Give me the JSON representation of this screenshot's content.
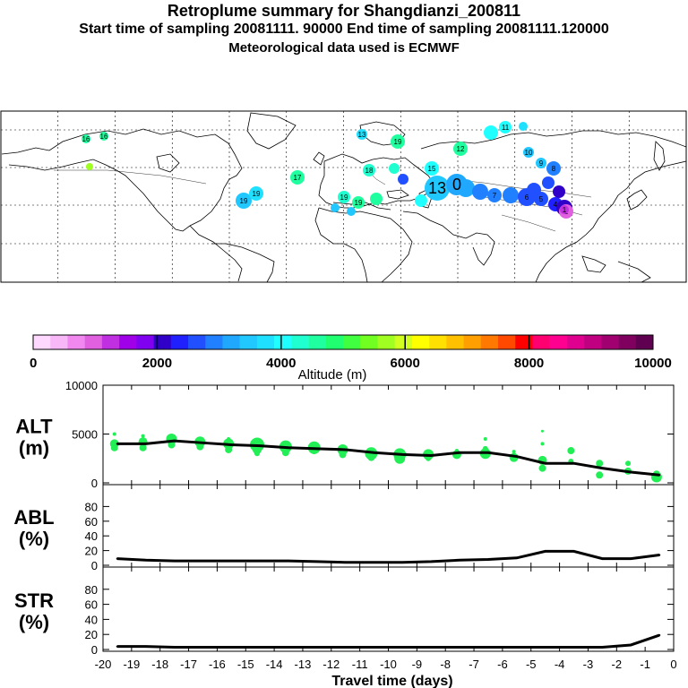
{
  "header": {
    "title": "Retroplume summary for Shangdianzi_200811",
    "sampling": "Start time of sampling 20081111. 90000     End time of sampling 20081111.120000",
    "met": "Meteorological data used is ECMWF"
  },
  "colors": {
    "plume_green": "#22ee55",
    "line": "#000000",
    "map_ocean": "#ffffff",
    "coast": "#000000"
  },
  "map": {
    "plume_labels": [
      "16",
      "16",
      "19",
      "19",
      "17",
      "18",
      "19",
      "19",
      "19",
      "15",
      "13",
      "12",
      "11",
      "10",
      "9",
      "8",
      "7",
      "6",
      "5",
      "4",
      "3",
      "2",
      "1",
      "13",
      "0"
    ]
  },
  "colorbar": {
    "title": "Altitude (m)",
    "ticks": [
      "0",
      "2000",
      "4000",
      "6000",
      "8000",
      "10000"
    ],
    "colors": [
      "#ffd8ff",
      "#f8b8f8",
      "#f088f0",
      "#e060e0",
      "#c030e0",
      "#a000e8",
      "#8000f0",
      "#3000c8",
      "#2020ff",
      "#2050ff",
      "#2080ff",
      "#20a8ff",
      "#20c8ff",
      "#20e0ff",
      "#20ffff",
      "#20ffd0",
      "#20ffa0",
      "#20ff70",
      "#40ff40",
      "#70ff20",
      "#a0ff20",
      "#d0ff20",
      "#ffff00",
      "#ffe000",
      "#ffc000",
      "#ffa000",
      "#ff7800",
      "#ff4800",
      "#ff0000",
      "#ff0070",
      "#ff0090",
      "#e00090",
      "#c00080",
      "#a00070",
      "#800060",
      "#600050"
    ]
  },
  "chart_data": [
    {
      "type": "line",
      "panel": "ALT",
      "ylabel": "ALT\n(m)",
      "ylabel_line1": "ALT",
      "ylabel_line2": "(m)",
      "ylim": [
        0,
        10000
      ],
      "yticks": [
        "10000",
        "5000",
        "0"
      ],
      "ytick_values": [
        10000,
        5000,
        0
      ],
      "x": [
        -19.5,
        -18.5,
        -17.5,
        -16.5,
        -15.5,
        -14.5,
        -13.5,
        -12.5,
        -11.5,
        -10.5,
        -9.5,
        -8.5,
        -7.5,
        -6.5,
        -5.5,
        -4.5,
        -3.5,
        -2.5,
        -1.5,
        -0.5
      ],
      "values": [
        4000,
        4000,
        4300,
        4100,
        3900,
        3800,
        3600,
        3500,
        3400,
        3100,
        2900,
        2800,
        3100,
        3100,
        2700,
        2000,
        2000,
        1500,
        1100,
        800
      ],
      "scatter": [
        {
          "x": -19.6,
          "y": 4000,
          "s": 5
        },
        {
          "x": -19.6,
          "y": 3600,
          "s": 4
        },
        {
          "x": -19.6,
          "y": 5000,
          "s": 2
        },
        {
          "x": -18.6,
          "y": 4200,
          "s": 5
        },
        {
          "x": -18.6,
          "y": 3600,
          "s": 4
        },
        {
          "x": -18.6,
          "y": 4800,
          "s": 2
        },
        {
          "x": -17.6,
          "y": 4500,
          "s": 6
        },
        {
          "x": -17.6,
          "y": 3900,
          "s": 4
        },
        {
          "x": -16.6,
          "y": 4200,
          "s": 6
        },
        {
          "x": -16.6,
          "y": 3700,
          "s": 4
        },
        {
          "x": -15.6,
          "y": 4000,
          "s": 6
        },
        {
          "x": -15.6,
          "y": 3400,
          "s": 4
        },
        {
          "x": -15.6,
          "y": 4500,
          "s": 2
        },
        {
          "x": -14.6,
          "y": 3900,
          "s": 8
        },
        {
          "x": -14.6,
          "y": 3400,
          "s": 5
        },
        {
          "x": -14.6,
          "y": 3000,
          "s": 3
        },
        {
          "x": -13.6,
          "y": 3700,
          "s": 7
        },
        {
          "x": -13.6,
          "y": 3100,
          "s": 4
        },
        {
          "x": -12.6,
          "y": 3600,
          "s": 7
        },
        {
          "x": -12.6,
          "y": 3300,
          "s": 4
        },
        {
          "x": -11.6,
          "y": 3400,
          "s": 6
        },
        {
          "x": -11.6,
          "y": 2900,
          "s": 4
        },
        {
          "x": -10.6,
          "y": 3000,
          "s": 7
        },
        {
          "x": -10.6,
          "y": 2600,
          "s": 4
        },
        {
          "x": -9.6,
          "y": 2900,
          "s": 7
        },
        {
          "x": -9.6,
          "y": 2500,
          "s": 6
        },
        {
          "x": -8.6,
          "y": 2900,
          "s": 6
        },
        {
          "x": -8.6,
          "y": 2500,
          "s": 3
        },
        {
          "x": -7.6,
          "y": 2900,
          "s": 5
        },
        {
          "x": -7.6,
          "y": 3300,
          "s": 2
        },
        {
          "x": -6.6,
          "y": 3000,
          "s": 6
        },
        {
          "x": -6.6,
          "y": 3500,
          "s": 3
        },
        {
          "x": -6.6,
          "y": 4500,
          "s": 2
        },
        {
          "x": -5.6,
          "y": 2600,
          "s": 5
        },
        {
          "x": -5.6,
          "y": 3200,
          "s": 2
        },
        {
          "x": -4.6,
          "y": 2300,
          "s": 5
        },
        {
          "x": -4.6,
          "y": 1500,
          "s": 4
        },
        {
          "x": -4.6,
          "y": 4000,
          "s": 2
        },
        {
          "x": -4.6,
          "y": 5300,
          "s": 1.5
        },
        {
          "x": -3.6,
          "y": 3300,
          "s": 4
        },
        {
          "x": -3.6,
          "y": 2200,
          "s": 3
        },
        {
          "x": -2.6,
          "y": 2000,
          "s": 4
        },
        {
          "x": -2.6,
          "y": 800,
          "s": 4
        },
        {
          "x": -1.6,
          "y": 1200,
          "s": 4
        },
        {
          "x": -1.6,
          "y": 2000,
          "s": 3
        },
        {
          "x": -0.6,
          "y": 600,
          "s": 6
        },
        {
          "x": -0.6,
          "y": 900,
          "s": 4
        }
      ]
    },
    {
      "type": "line",
      "panel": "ABL",
      "ylabel_line1": "ABL",
      "ylabel_line2": "(%)",
      "ylim": [
        0,
        100
      ],
      "yticks": [
        "80",
        "60",
        "40",
        "20",
        "0"
      ],
      "ytick_values": [
        80,
        60,
        40,
        20,
        0
      ],
      "x": [
        -19.5,
        -18.5,
        -17.5,
        -16.5,
        -15.5,
        -14.5,
        -13.5,
        -12.5,
        -11.5,
        -10.5,
        -9.5,
        -8.5,
        -7.5,
        -6.5,
        -5.5,
        -4.5,
        -3.5,
        -2.5,
        -1.5,
        -0.5
      ],
      "values": [
        9,
        7,
        6,
        6,
        6,
        6,
        6,
        5,
        4,
        4,
        4,
        5,
        7,
        8,
        10,
        19,
        19,
        9,
        9,
        14
      ]
    },
    {
      "type": "line",
      "panel": "STR",
      "ylabel_line1": "STR",
      "ylabel_line2": "(%)",
      "ylim": [
        0,
        100
      ],
      "yticks": [
        "80",
        "60",
        "40",
        "20",
        "0"
      ],
      "ytick_values": [
        80,
        60,
        40,
        20,
        0
      ],
      "x": [
        -19.5,
        -18.5,
        -17.5,
        -16.5,
        -15.5,
        -14.5,
        -13.5,
        -12.5,
        -11.5,
        -10.5,
        -9.5,
        -8.5,
        -7.5,
        -6.5,
        -5.5,
        -4.5,
        -3.5,
        -2.5,
        -1.5,
        -0.5
      ],
      "values": [
        4,
        4,
        3,
        3,
        3,
        3,
        3,
        3,
        3,
        3,
        3,
        3,
        3,
        3,
        3,
        3,
        3,
        3,
        6,
        19
      ]
    }
  ],
  "xaxis": {
    "title": "Travel time (days)",
    "xlim": [
      -20,
      0
    ],
    "tick_labels": [
      "-20",
      "-19",
      "-18",
      "-17",
      "-16",
      "-15",
      "-14",
      "-13",
      "-12",
      "-11",
      "-10",
      "-9",
      "-8",
      "-7",
      "-6",
      "-5",
      "-4",
      "-3",
      "-2",
      "-1",
      "0"
    ]
  }
}
